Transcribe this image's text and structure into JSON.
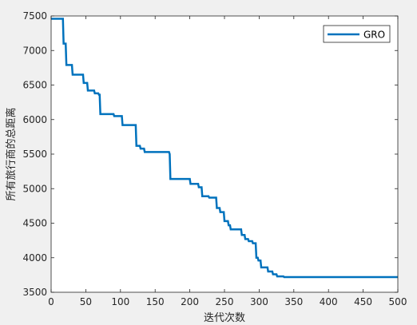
{
  "chart_data": {
    "type": "line",
    "title": "",
    "xlabel": "迭代次数",
    "ylabel": "所有旅行商的总距离",
    "xlim": [
      0,
      500
    ],
    "ylim": [
      3500,
      7500
    ],
    "xticks": [
      0,
      50,
      100,
      150,
      200,
      250,
      300,
      350,
      400,
      450,
      500
    ],
    "yticks": [
      3500,
      4000,
      4500,
      5000,
      5500,
      6000,
      6500,
      7000,
      7500
    ],
    "grid": false,
    "legend_position": "top-right",
    "colors": {
      "line": "#0072bd",
      "axes_bg": "#ffffff",
      "figure_bg": "#f0f0f0",
      "axis": "#262626"
    },
    "series": [
      {
        "name": "GRO",
        "x": [
          0,
          17,
          18,
          21,
          22,
          30,
          31,
          46,
          47,
          52,
          53,
          62,
          63,
          68,
          69,
          70,
          71,
          90,
          91,
          102,
          103,
          122,
          123,
          128,
          129,
          134,
          135,
          170,
          171,
          172,
          200,
          201,
          212,
          213,
          217,
          218,
          227,
          228,
          238,
          239,
          243,
          244,
          249,
          250,
          255,
          256,
          258,
          259,
          274,
          275,
          279,
          280,
          284,
          285,
          290,
          291,
          295,
          296,
          298,
          299,
          302,
          303,
          312,
          313,
          319,
          320,
          325,
          326,
          335,
          336,
          500
        ],
        "values": [
          7460,
          7460,
          7100,
          7100,
          6790,
          6790,
          6650,
          6650,
          6530,
          6530,
          6420,
          6420,
          6380,
          6380,
          6360,
          6360,
          6080,
          6080,
          6050,
          6050,
          5920,
          5920,
          5620,
          5620,
          5580,
          5580,
          5530,
          5530,
          5500,
          5140,
          5140,
          5070,
          5070,
          5020,
          5020,
          4890,
          4890,
          4870,
          4870,
          4720,
          4720,
          4660,
          4660,
          4530,
          4530,
          4470,
          4470,
          4410,
          4410,
          4330,
          4330,
          4270,
          4270,
          4240,
          4240,
          4210,
          4210,
          4000,
          4000,
          3960,
          3960,
          3860,
          3860,
          3800,
          3800,
          3760,
          3760,
          3730,
          3730,
          3720,
          3720
        ]
      }
    ]
  }
}
